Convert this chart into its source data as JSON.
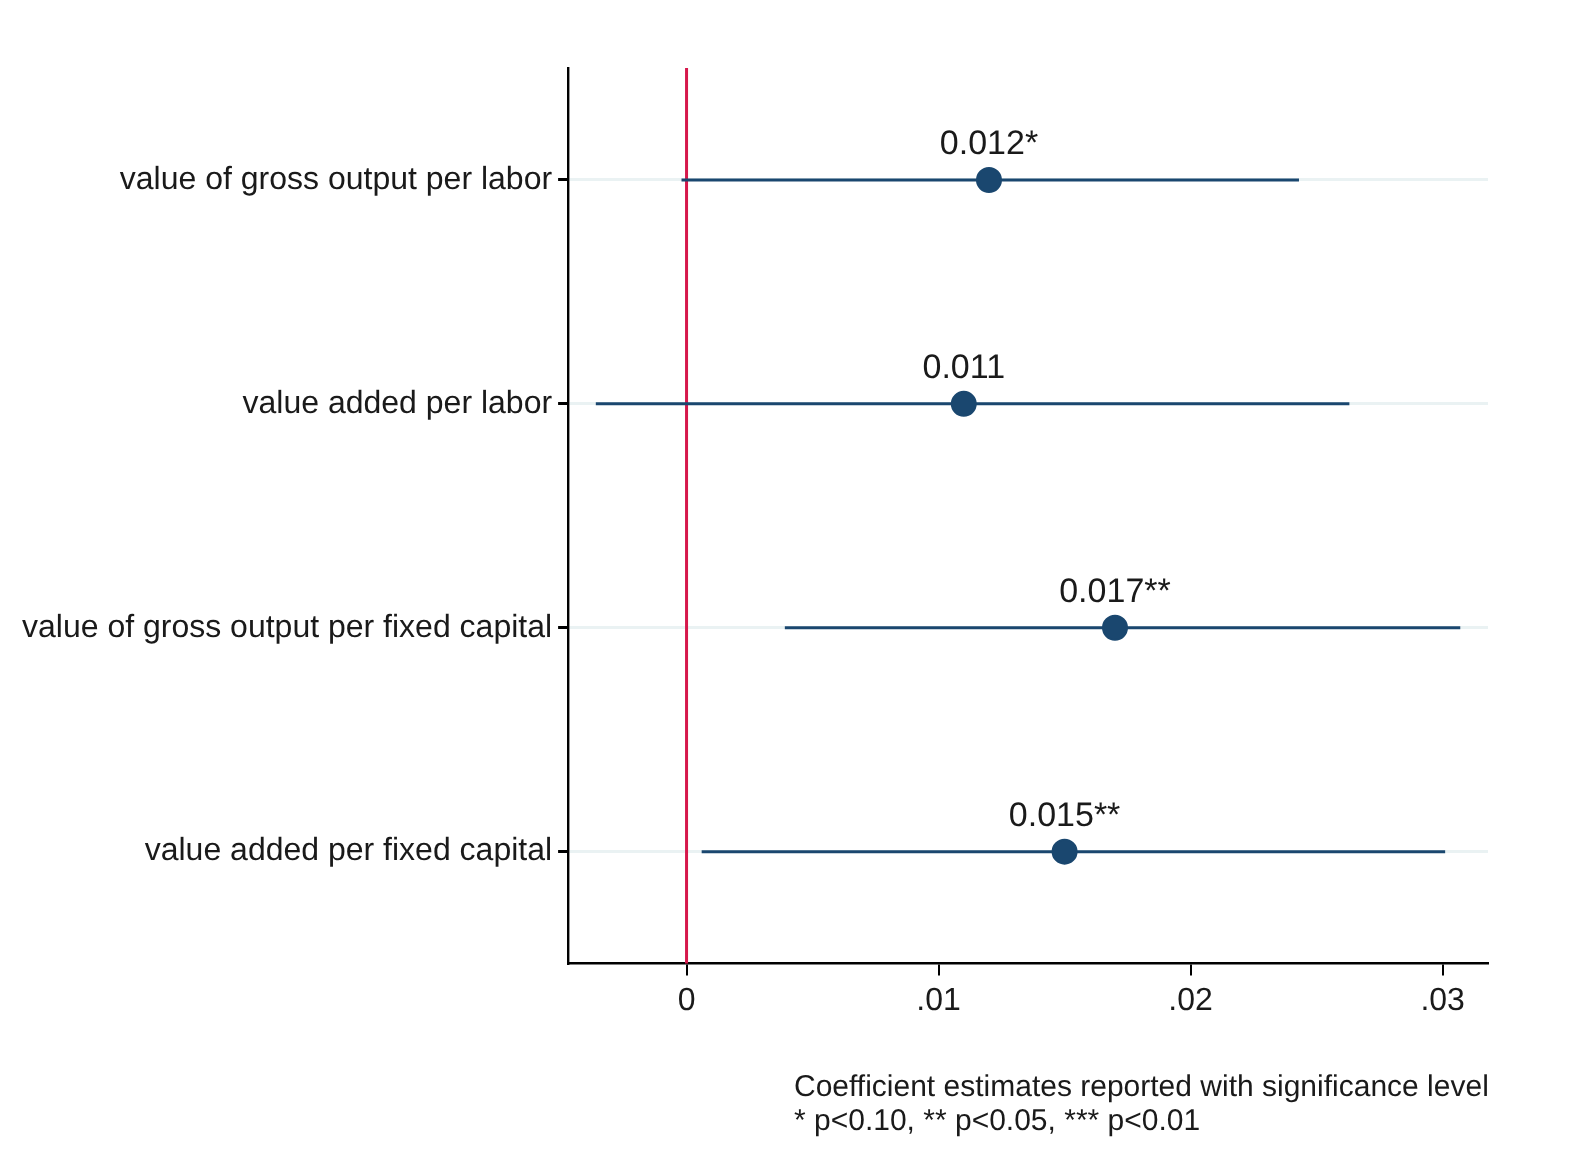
{
  "chart_data": {
    "type": "scatter",
    "orientation": "horizontal",
    "categories": [
      "value of gross output per labor",
      "value added per labor",
      "value of gross output per fixed capital",
      "value added per fixed capital"
    ],
    "values": [
      0.012,
      0.011,
      0.017,
      0.015
    ],
    "errors": [
      [
        -0.0002,
        0.0243
      ],
      [
        -0.0036,
        0.0263
      ],
      [
        0.0039,
        0.0307
      ],
      [
        0.0006,
        0.0301
      ]
    ],
    "value_labels": [
      "0.012*",
      "0.011",
      "0.017**",
      "0.015**"
    ],
    "color": "#1a476f",
    "marker": "circle",
    "grid": "y",
    "xlim": [
      -0.0047,
      0.0318
    ],
    "xticks": [
      0,
      {
        "value": 0.01,
        "label": ".01"
      },
      {
        "value": 0.02,
        "label": ".02"
      },
      {
        "value": 0.03,
        "label": ".03"
      }
    ],
    "ref_lines": [
      {
        "axis": "x",
        "value": 0,
        "color": "#d6184b"
      }
    ],
    "annotations": [
      "Coefficient estimates reported with significance level",
      "* p<0.10, ** p<0.05, *** p<0.01"
    ]
  }
}
